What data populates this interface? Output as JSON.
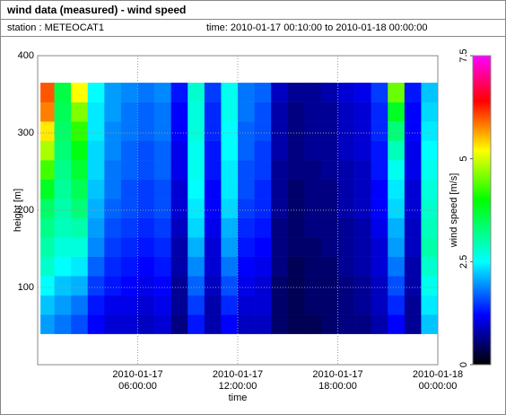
{
  "chart_data": {
    "type": "heatmap",
    "title": "wind data (measured) - wind speed",
    "station": "station : METEOCAT1",
    "period": "time: 2010-01-17 00:10:00 to 2010-01-18 00:00:00",
    "xlabel": "time",
    "ylabel": "height [m]",
    "colorbar_label": "wind speed [m/s]",
    "xlim": [
      "2010-01-17 00:00:00",
      "2010-01-18 00:00:00"
    ],
    "xticks": [
      {
        "value": "2010-01-17 06:00:00",
        "label": "2010-01-17 06:00:00"
      },
      {
        "value": "2010-01-17 12:00:00",
        "label": "2010-01-17 12:00:00"
      },
      {
        "value": "2010-01-17 18:00:00",
        "label": "2010-01-17 18:00:00"
      },
      {
        "value": "2010-01-18 00:00:00",
        "label": "2010-01-18 00:00:00"
      }
    ],
    "ylim": [
      0,
      400
    ],
    "yticks": [
      100,
      200,
      300,
      400
    ],
    "zlim": [
      0,
      7.5
    ],
    "zticks": [
      0,
      2.5,
      5,
      7.5
    ],
    "grid": true,
    "colormap": [
      [
        0,
        "#000000"
      ],
      [
        0.6,
        "#000080"
      ],
      [
        1.2,
        "#0000ff"
      ],
      [
        2.5,
        "#00ffff"
      ],
      [
        4,
        "#00ff00"
      ],
      [
        5.2,
        "#ffff00"
      ],
      [
        6.4,
        "#ff0000"
      ],
      [
        7.5,
        "#ff00ff"
      ]
    ],
    "xbins": [
      "2010-01-17 00:10:00",
      "2010-01-17 01:00:00",
      "2010-01-17 02:00:00",
      "2010-01-17 03:00:00",
      "2010-01-17 04:00:00",
      "2010-01-17 05:00:00",
      "2010-01-17 06:00:00",
      "2010-01-17 07:00:00",
      "2010-01-17 08:00:00",
      "2010-01-17 09:00:00",
      "2010-01-17 10:00:00",
      "2010-01-17 11:00:00",
      "2010-01-17 12:00:00",
      "2010-01-17 13:00:00",
      "2010-01-17 14:00:00",
      "2010-01-17 15:00:00",
      "2010-01-17 16:00:00",
      "2010-01-17 17:00:00",
      "2010-01-17 18:00:00",
      "2010-01-17 19:00:00",
      "2010-01-17 20:00:00",
      "2010-01-17 21:00:00",
      "2010-01-17 22:00:00",
      "2010-01-17 23:00:00",
      "2010-01-18 00:00:00"
    ],
    "ybins": [
      40,
      65,
      90,
      115,
      140,
      165,
      190,
      215,
      240,
      265,
      290,
      315,
      340,
      365
    ],
    "values": [
      [
        2.0,
        1.8,
        1.6,
        1.2,
        1.0,
        1.0,
        0.9,
        1.0,
        0.6,
        1.3,
        0.8,
        1.2,
        0.9,
        0.9,
        0.5,
        0.4,
        0.4,
        0.5,
        0.6,
        0.6,
        0.8,
        1.2,
        0.7,
        2.2
      ],
      [
        2.2,
        2.0,
        1.8,
        1.3,
        1.1,
        1.1,
        1.0,
        1.1,
        0.7,
        1.5,
        0.8,
        1.4,
        1.0,
        1.0,
        0.5,
        0.4,
        0.5,
        0.5,
        0.6,
        0.7,
        0.9,
        1.4,
        0.7,
        2.4
      ],
      [
        2.5,
        2.2,
        2.1,
        1.5,
        1.3,
        1.2,
        1.1,
        1.2,
        0.7,
        1.7,
        0.9,
        1.6,
        1.1,
        1.0,
        0.5,
        0.4,
        0.5,
        0.5,
        0.6,
        0.7,
        0.9,
        1.6,
        0.8,
        2.6
      ],
      [
        2.8,
        2.5,
        2.4,
        1.7,
        1.4,
        1.3,
        1.2,
        1.3,
        0.8,
        1.9,
        1.0,
        1.8,
        1.2,
        1.1,
        0.6,
        0.4,
        0.5,
        0.5,
        0.7,
        0.8,
        1.0,
        1.8,
        0.8,
        2.8
      ],
      [
        3.0,
        2.7,
        2.7,
        1.9,
        1.5,
        1.4,
        1.3,
        1.4,
        0.8,
        2.1,
        1.0,
        2.0,
        1.3,
        1.2,
        0.6,
        0.5,
        0.5,
        0.6,
        0.7,
        0.8,
        1.0,
        2.0,
        0.9,
        3.0
      ],
      [
        3.2,
        2.9,
        3.0,
        2.0,
        1.6,
        1.5,
        1.4,
        1.5,
        0.9,
        2.3,
        1.1,
        2.1,
        1.4,
        1.3,
        0.6,
        0.5,
        0.6,
        0.6,
        0.7,
        0.8,
        1.1,
        2.1,
        0.9,
        2.9
      ],
      [
        3.4,
        3.0,
        3.3,
        2.1,
        1.7,
        1.6,
        1.5,
        1.6,
        1.0,
        2.4,
        1.2,
        2.3,
        1.5,
        1.4,
        0.7,
        0.5,
        0.6,
        0.6,
        0.8,
        0.9,
        1.2,
        2.3,
        1.0,
        2.8
      ],
      [
        3.8,
        3.1,
        3.5,
        2.2,
        1.8,
        1.6,
        1.5,
        1.6,
        1.0,
        2.5,
        1.2,
        2.4,
        1.6,
        1.4,
        0.7,
        0.5,
        0.6,
        0.6,
        0.8,
        0.9,
        1.2,
        2.4,
        1.0,
        2.7
      ],
      [
        4.3,
        3.2,
        3.7,
        2.3,
        1.8,
        1.7,
        1.6,
        1.7,
        1.1,
        2.6,
        1.3,
        2.4,
        1.6,
        1.5,
        0.7,
        0.6,
        0.6,
        0.7,
        0.8,
        0.9,
        1.3,
        2.6,
        1.1,
        2.6
      ],
      [
        4.8,
        3.3,
        3.9,
        2.3,
        1.9,
        1.7,
        1.6,
        1.7,
        1.1,
        2.6,
        1.3,
        2.5,
        1.7,
        1.5,
        0.8,
        0.6,
        0.7,
        0.7,
        0.9,
        1.0,
        1.3,
        2.9,
        1.1,
        2.5
      ],
      [
        5.3,
        3.4,
        4.2,
        2.4,
        1.9,
        1.8,
        1.7,
        1.8,
        1.2,
        2.7,
        1.4,
        2.5,
        1.7,
        1.6,
        0.8,
        0.6,
        0.7,
        0.7,
        0.9,
        1.0,
        1.4,
        3.3,
        1.2,
        2.4
      ],
      [
        5.8,
        3.5,
        4.6,
        2.4,
        2.0,
        1.8,
        1.7,
        1.8,
        1.2,
        2.7,
        1.4,
        2.6,
        1.8,
        1.6,
        0.8,
        0.6,
        0.7,
        0.7,
        0.9,
        1.0,
        1.4,
        3.8,
        1.2,
        2.3
      ],
      [
        6.0,
        3.6,
        5.2,
        2.5,
        2.0,
        1.9,
        1.8,
        1.9,
        1.3,
        2.8,
        1.5,
        2.6,
        1.8,
        1.7,
        0.9,
        0.7,
        0.7,
        0.8,
        1.0,
        1.1,
        1.5,
        4.5,
        1.3,
        2.2
      ]
    ]
  }
}
